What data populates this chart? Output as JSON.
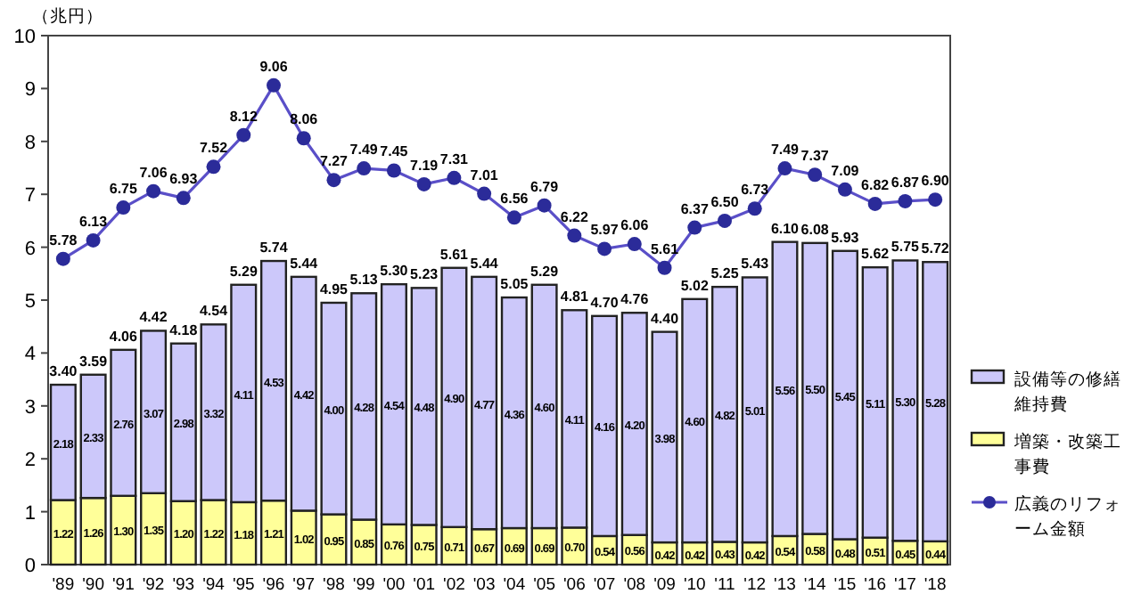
{
  "chart_data": {
    "type": "bar",
    "ylabel": "（兆円）",
    "stacked": true,
    "legend": "right",
    "marker": "circle",
    "line_style": "solid",
    "categories": [
      "'89",
      "'90",
      "'91",
      "'92",
      "'93",
      "'94",
      "'95",
      "'96",
      "'97",
      "'98",
      "'99",
      "'00",
      "'01",
      "'02",
      "'03",
      "'04",
      "'05",
      "'06",
      "'07",
      "'08",
      "'09",
      "'10",
      "'11",
      "'12",
      "'13",
      "'14",
      "'15",
      "'16",
      "'17",
      "'18"
    ],
    "ylim": [
      0,
      10
    ],
    "yticks": [
      0,
      1,
      2,
      3,
      4,
      5,
      6,
      7,
      8,
      9,
      10
    ],
    "series": [
      {
        "name": "増築・改築工事費",
        "color": "#ffff99",
        "values": [
          1.22,
          1.26,
          1.3,
          1.35,
          1.2,
          1.22,
          1.18,
          1.21,
          1.02,
          0.95,
          0.85,
          0.76,
          0.75,
          0.71,
          0.67,
          0.69,
          0.69,
          0.7,
          0.54,
          0.56,
          0.42,
          0.42,
          0.43,
          0.42,
          0.54,
          0.58,
          0.48,
          0.51,
          0.45,
          0.44
        ],
        "value_labels": [
          "1.22",
          "1.26",
          "1.30",
          "1.35",
          "1.20",
          "1.22",
          "1.18",
          "1.21",
          "1.02",
          "0.95",
          "0.85",
          "0.76",
          "0.75",
          "0.71",
          "0.67",
          "0.69",
          "0.69",
          "0.70",
          "0.54",
          "0.56",
          "0.42",
          "0.42",
          "0.43",
          "0.42",
          "0.54",
          "0.58",
          "0.48",
          "0.51",
          "0.45",
          "0.44"
        ]
      },
      {
        "name": "設備等の修繕維持費",
        "color": "#ccc8fa",
        "values": [
          2.18,
          2.33,
          2.76,
          3.07,
          2.98,
          3.32,
          4.11,
          4.53,
          4.42,
          4.0,
          4.28,
          4.54,
          4.48,
          4.9,
          4.77,
          4.36,
          4.6,
          4.11,
          4.16,
          4.2,
          3.98,
          4.6,
          4.82,
          5.01,
          5.56,
          5.5,
          5.45,
          5.11,
          5.3,
          5.28
        ],
        "value_labels": [
          "2.18",
          "2.33",
          "2.76",
          "3.07",
          "2.98",
          "3.32",
          "4.11",
          "4.53",
          "4.42",
          "4.00",
          "4.28",
          "4.54",
          "4.48",
          "4.90",
          "4.77",
          "4.36",
          "4.60",
          "4.11",
          "4.16",
          "4.20",
          "3.98",
          "4.60",
          "4.82",
          "5.01",
          "5.56",
          "5.50",
          "5.45",
          "5.11",
          "5.30",
          "5.28"
        ]
      },
      {
        "name": "広義のリフォーム金額",
        "type": "line",
        "color": "#2b2b99",
        "values": [
          5.78,
          6.13,
          6.75,
          7.06,
          6.93,
          7.52,
          8.12,
          9.06,
          8.06,
          7.27,
          7.49,
          7.45,
          7.19,
          7.31,
          7.01,
          6.56,
          6.79,
          6.22,
          5.97,
          6.06,
          5.61,
          6.37,
          6.5,
          6.73,
          7.49,
          7.37,
          7.09,
          6.82,
          6.87,
          6.9
        ],
        "value_labels": [
          "5.78",
          "6.13",
          "6.75",
          "7.06",
          "6.93",
          "7.52",
          "8.12",
          "9.06",
          "8.06",
          "7.27",
          "7.49",
          "7.45",
          "7.19",
          "7.31",
          "7.01",
          "6.56",
          "6.79",
          "6.22",
          "5.97",
          "6.06",
          "5.61",
          "6.37",
          "6.50",
          "6.73",
          "7.49",
          "7.37",
          "7.09",
          "6.82",
          "6.87",
          "6.90"
        ]
      }
    ],
    "totals": [
      "3.40",
      "3.59",
      "4.06",
      "4.42",
      "4.18",
      "4.54",
      "5.29",
      "5.74",
      "5.44",
      "4.95",
      "5.13",
      "5.30",
      "5.23",
      "5.61",
      "5.44",
      "5.05",
      "5.29",
      "4.81",
      "4.70",
      "4.76",
      "4.40",
      "5.02",
      "5.25",
      "5.43",
      "6.10",
      "6.08",
      "5.93",
      "5.62",
      "5.75",
      "5.72"
    ]
  }
}
